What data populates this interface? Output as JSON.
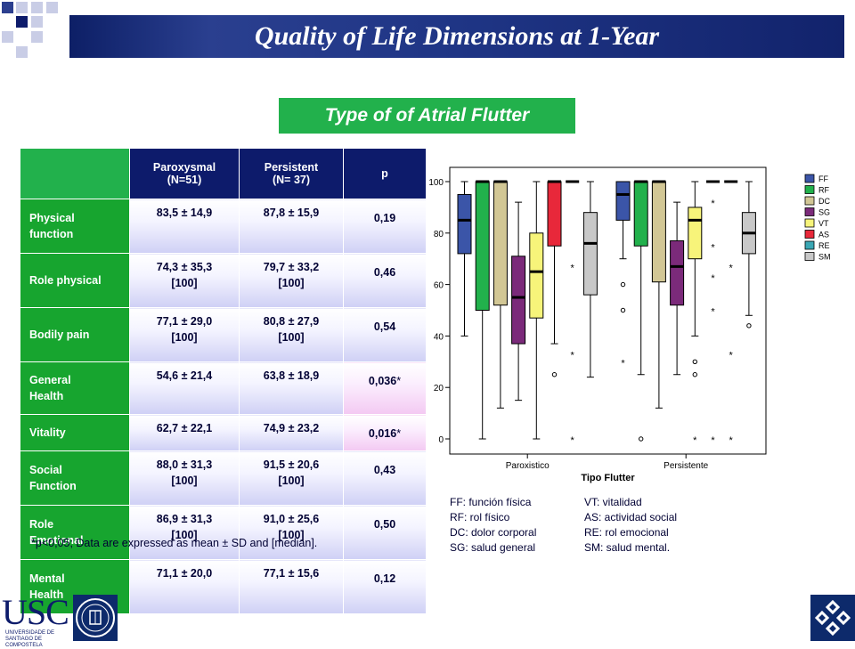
{
  "title": "Quality of Life Dimensions at 1-Year",
  "subtitle": "Type of of Atrial Flutter",
  "table": {
    "headers": [
      "",
      "Paroxysmal (N=51)",
      "Persistent (N= 37)",
      "p"
    ],
    "header_lines": [
      [
        "",
        ""
      ],
      [
        "Paroxysmal",
        "(N=51)"
      ],
      [
        "Persistent",
        "(N= 37)"
      ],
      [
        "p",
        ""
      ]
    ],
    "rows": [
      {
        "label_lines": [
          "Physical",
          "function"
        ],
        "parox": [
          "83,5 ± 14,9",
          ""
        ],
        "persist": [
          "87,8 ± 15,9",
          ""
        ],
        "p": "0,19",
        "p_mark": "",
        "sig": false
      },
      {
        "label_lines": [
          "Role physical",
          ""
        ],
        "parox": [
          "74,3 ± 35,3",
          "[100]"
        ],
        "persist": [
          "79,7 ±  33,2",
          "[100]"
        ],
        "p": "0,46",
        "p_mark": "",
        "sig": false
      },
      {
        "label_lines": [
          "Bodily pain",
          ""
        ],
        "parox": [
          "77,1 ±  29,0",
          "[100]"
        ],
        "persist": [
          "80,8 ±  27,9",
          "[100]"
        ],
        "p": "0,54",
        "p_mark": "",
        "sig": false
      },
      {
        "label_lines": [
          "General",
          "Health"
        ],
        "parox": [
          "54,6 ± 21,4",
          ""
        ],
        "persist": [
          "63,8 ± 18,9",
          ""
        ],
        "p": "0,036",
        "p_mark": "*",
        "sig": true
      },
      {
        "label_lines": [
          "Vitality",
          ""
        ],
        "parox": [
          "62,7 ± 22,1",
          ""
        ],
        "persist": [
          "74,9 ± 23,2",
          ""
        ],
        "p": "0,016",
        "p_mark": "*",
        "sig": true
      },
      {
        "label_lines": [
          "Social",
          "Function"
        ],
        "parox": [
          "88,0 ± 31,3",
          "[100]"
        ],
        "persist": [
          "91,5 ± 20,6",
          "[100]"
        ],
        "p": "0,43",
        "p_mark": "",
        "sig": false
      },
      {
        "label_lines": [
          "Role",
          "Emotional"
        ],
        "parox": [
          "86,9 ± 31,3",
          "[100]"
        ],
        "persist": [
          "91,0 ± 25,6",
          "[100]"
        ],
        "p": "0,50",
        "p_mark": "",
        "sig": false
      },
      {
        "label_lines": [
          "Mental",
          "Health"
        ],
        "parox": [
          "71,1 ± 20,0",
          ""
        ],
        "persist": [
          "77,1 ± 15,6",
          ""
        ],
        "p": "0,12",
        "p_mark": "",
        "sig": false
      }
    ]
  },
  "footnote": "*p<0,05; Data are expressed as mean ± SD and [median].",
  "abbreviations": {
    "left": [
      "FF: función física",
      "RF: rol físico",
      "DC: dolor corporal",
      "SG: salud general"
    ],
    "right": [
      "VT: vitalidad",
      "AS: actividad social",
      "RE: rol emocional",
      "SM: salud mental."
    ]
  },
  "logo": {
    "text": "USC",
    "sub": "UNIVERSIDADE DE SANTIAGO DE COMPOSTELA"
  },
  "chart_data": {
    "type": "boxplot",
    "xlabel": "Tipo Flutter",
    "ylabel": "",
    "ylim": [
      0,
      100
    ],
    "yticks": [
      0,
      20,
      40,
      60,
      80,
      100
    ],
    "categories": [
      "Paroxistico",
      "Persistente"
    ],
    "legend_position": "right",
    "series": [
      {
        "name": "FF",
        "color": "#3b55a8"
      },
      {
        "name": "RF",
        "color": "#22b14c"
      },
      {
        "name": "DC",
        "color": "#d2c795"
      },
      {
        "name": "SG",
        "color": "#7b2a7a"
      },
      {
        "name": "VT",
        "color": "#f7f47a"
      },
      {
        "name": "AS",
        "color": "#e8283a"
      },
      {
        "name": "RE",
        "color": "#3aa7b4"
      },
      {
        "name": "SM",
        "color": "#c8c8c8"
      }
    ],
    "boxes": [
      {
        "category": "Paroxistico",
        "series": "FF",
        "whisker_low": 40,
        "q1": 72,
        "median": 85,
        "q3": 95,
        "whisker_high": 100,
        "outliers": [],
        "extremes": []
      },
      {
        "category": "Paroxistico",
        "series": "RF",
        "whisker_low": 0,
        "q1": 50,
        "median": 100,
        "q3": 100,
        "whisker_high": 100,
        "outliers": [],
        "extremes": []
      },
      {
        "category": "Paroxistico",
        "series": "DC",
        "whisker_low": 12,
        "q1": 52,
        "median": 100,
        "q3": 100,
        "whisker_high": 100,
        "outliers": [],
        "extremes": []
      },
      {
        "category": "Paroxistico",
        "series": "SG",
        "whisker_low": 15,
        "q1": 37,
        "median": 55,
        "q3": 71,
        "whisker_high": 92,
        "outliers": [],
        "extremes": []
      },
      {
        "category": "Paroxistico",
        "series": "VT",
        "whisker_low": 0,
        "q1": 47,
        "median": 65,
        "q3": 80,
        "whisker_high": 100,
        "outliers": [],
        "extremes": []
      },
      {
        "category": "Paroxistico",
        "series": "AS",
        "whisker_low": 37,
        "q1": 75,
        "median": 100,
        "q3": 100,
        "whisker_high": 100,
        "outliers": [
          25
        ],
        "extremes": []
      },
      {
        "category": "Paroxistico",
        "series": "RE",
        "whisker_low": 100,
        "q1": 100,
        "median": 100,
        "q3": 100,
        "whisker_high": 100,
        "outliers": [],
        "extremes": [
          67,
          33,
          0
        ]
      },
      {
        "category": "Paroxistico",
        "series": "SM",
        "whisker_low": 24,
        "q1": 56,
        "median": 76,
        "q3": 88,
        "whisker_high": 100,
        "outliers": [],
        "extremes": []
      },
      {
        "category": "Persistente",
        "series": "FF",
        "whisker_low": 70,
        "q1": 85,
        "median": 95,
        "q3": 100,
        "whisker_high": 100,
        "outliers": [
          60,
          50
        ],
        "extremes": [
          30
        ]
      },
      {
        "category": "Persistente",
        "series": "RF",
        "whisker_low": 25,
        "q1": 75,
        "median": 100,
        "q3": 100,
        "whisker_high": 100,
        "outliers": [
          0
        ],
        "extremes": []
      },
      {
        "category": "Persistente",
        "series": "DC",
        "whisker_low": 12,
        "q1": 61,
        "median": 100,
        "q3": 100,
        "whisker_high": 100,
        "outliers": [],
        "extremes": []
      },
      {
        "category": "Persistente",
        "series": "SG",
        "whisker_low": 25,
        "q1": 52,
        "median": 67,
        "q3": 77,
        "whisker_high": 92,
        "outliers": [],
        "extremes": []
      },
      {
        "category": "Persistente",
        "series": "VT",
        "whisker_low": 40,
        "q1": 70,
        "median": 85,
        "q3": 90,
        "whisker_high": 100,
        "outliers": [
          30,
          25
        ],
        "extremes": [
          0
        ]
      },
      {
        "category": "Persistente",
        "series": "AS",
        "whisker_low": 100,
        "q1": 100,
        "median": 100,
        "q3": 100,
        "whisker_high": 100,
        "outliers": [],
        "extremes": [
          92,
          75,
          63,
          50,
          0
        ]
      },
      {
        "category": "Persistente",
        "series": "RE",
        "whisker_low": 100,
        "q1": 100,
        "median": 100,
        "q3": 100,
        "whisker_high": 100,
        "outliers": [],
        "extremes": [
          67,
          33,
          0
        ]
      },
      {
        "category": "Persistente",
        "series": "SM",
        "whisker_low": 48,
        "q1": 72,
        "median": 80,
        "q3": 88,
        "whisker_high": 100,
        "outliers": [
          44
        ],
        "extremes": []
      }
    ]
  }
}
